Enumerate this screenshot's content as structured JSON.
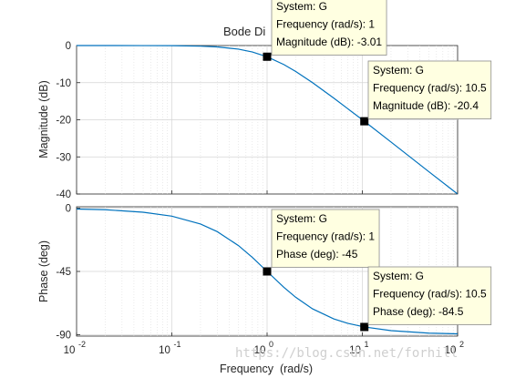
{
  "chart_data": [
    {
      "type": "line",
      "title": "Bode Di",
      "ylabel": "Magnitude (dB)",
      "xlabel": "",
      "xscale": "log",
      "xlim": [
        0.01,
        100
      ],
      "ylim": [
        -40,
        0
      ],
      "yticks": [
        0,
        -10,
        -20,
        -30,
        -40
      ],
      "ytick_labels": [
        "0",
        "-10",
        "-20",
        "-30",
        "-40"
      ],
      "grid": true,
      "series": [
        {
          "color": "#0072bd",
          "x": [
            0.01,
            0.02,
            0.05,
            0.1,
            0.2,
            0.3,
            0.5,
            0.7,
            1,
            1.5,
            2,
            3,
            5,
            7,
            10.5,
            20,
            50,
            100
          ],
          "y": [
            0,
            0,
            -0.01,
            -0.04,
            -0.17,
            -0.37,
            -0.97,
            -1.74,
            -3.01,
            -5.12,
            -6.99,
            -10.0,
            -14.15,
            -16.98,
            -20.4,
            -26.0,
            -34.0,
            -40.0
          ]
        }
      ],
      "datatips": [
        {
          "x": 1,
          "y": -3.01,
          "lines": [
            "System: G",
            "Frequency (rad/s): 1",
            "Magnitude (dB): -3.01"
          ]
        },
        {
          "x": 10.5,
          "y": -20.4,
          "lines": [
            "System: G",
            "Frequency (rad/s): 10.5",
            "Magnitude (dB): -20.4"
          ]
        }
      ]
    },
    {
      "type": "line",
      "title": "",
      "ylabel": "Phase (deg)",
      "xlabel": "Frequency  (rad/s)",
      "xscale": "log",
      "xlim": [
        0.01,
        100
      ],
      "ylim": [
        -91,
        1
      ],
      "yticks": [
        0,
        -45,
        -90
      ],
      "ytick_labels": [
        "0",
        "-45",
        "-90"
      ],
      "xtick_bases": [
        "10",
        "10",
        "10",
        "10",
        "10"
      ],
      "xtick_exps": [
        "-2",
        "-1",
        "0",
        "1",
        "2"
      ],
      "grid": true,
      "series": [
        {
          "color": "#0072bd",
          "x": [
            0.01,
            0.02,
            0.05,
            0.1,
            0.2,
            0.3,
            0.5,
            0.7,
            1,
            1.5,
            2,
            3,
            5,
            7,
            10.5,
            20,
            50,
            100
          ],
          "y": [
            -0.6,
            -1.1,
            -2.9,
            -5.7,
            -11.3,
            -16.7,
            -26.6,
            -35.0,
            -45,
            -56.3,
            -63.4,
            -71.6,
            -78.7,
            -81.9,
            -84.5,
            -87.1,
            -88.9,
            -89.4
          ]
        }
      ],
      "datatips": [
        {
          "x": 1,
          "y": -45,
          "lines": [
            "System: G",
            "Frequency (rad/s): 1",
            "Phase (deg): -45"
          ]
        },
        {
          "x": 10.5,
          "y": -84.5,
          "lines": [
            "System: G",
            "Frequency (rad/s): 10.5",
            "Phase (deg): -84.5"
          ]
        }
      ]
    }
  ],
  "watermark": "https://blog.csdn.net/forhill"
}
